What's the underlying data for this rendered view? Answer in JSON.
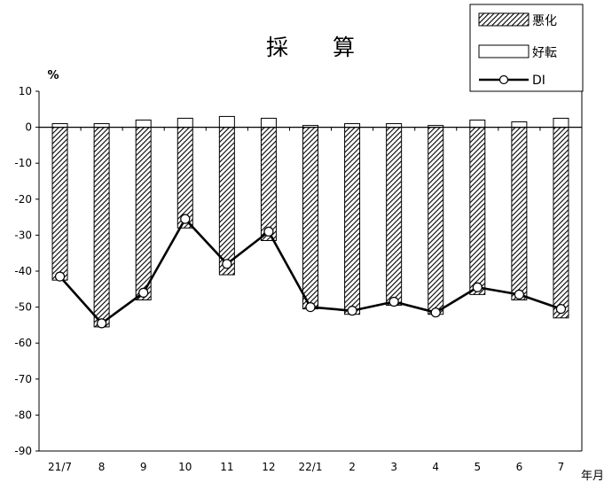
{
  "chart_data": {
    "type": "bar",
    "title": "採　　算",
    "ylabel": "%",
    "xlabel": "年月",
    "ylim": [
      -90,
      10
    ],
    "yticks": [
      10,
      0,
      -10,
      -20,
      -30,
      -40,
      -50,
      -60,
      -70,
      -80,
      -90
    ],
    "categories": [
      "21/7",
      "8",
      "9",
      "10",
      "11",
      "12",
      "22/1",
      "2",
      "3",
      "4",
      "5",
      "6",
      "7"
    ],
    "series": [
      {
        "name": "悪化",
        "kind": "bar",
        "pattern": "diagonal-hatch",
        "values": [
          -42.5,
          -55.5,
          -48.0,
          -28.0,
          -41.0,
          -31.5,
          -50.5,
          -52.0,
          -49.5,
          -52.0,
          -46.5,
          -48.0,
          -53.0
        ]
      },
      {
        "name": "好転",
        "kind": "bar",
        "pattern": "white",
        "values": [
          1.0,
          1.0,
          2.0,
          2.5,
          3.0,
          2.5,
          0.5,
          1.0,
          1.0,
          0.5,
          2.0,
          1.5,
          2.5
        ]
      },
      {
        "name": "DI",
        "kind": "line",
        "marker": "open-circle",
        "values": [
          -41.5,
          -54.5,
          -46.0,
          -25.5,
          -38.0,
          -29.0,
          -50.0,
          -51.0,
          -48.5,
          -51.5,
          -44.5,
          -46.5,
          -50.5
        ]
      }
    ],
    "legend_position": "top-right",
    "grid": false,
    "colors": {
      "bar_fill": "#ffffff",
      "hatch": "#000000",
      "line": "#000000"
    }
  }
}
